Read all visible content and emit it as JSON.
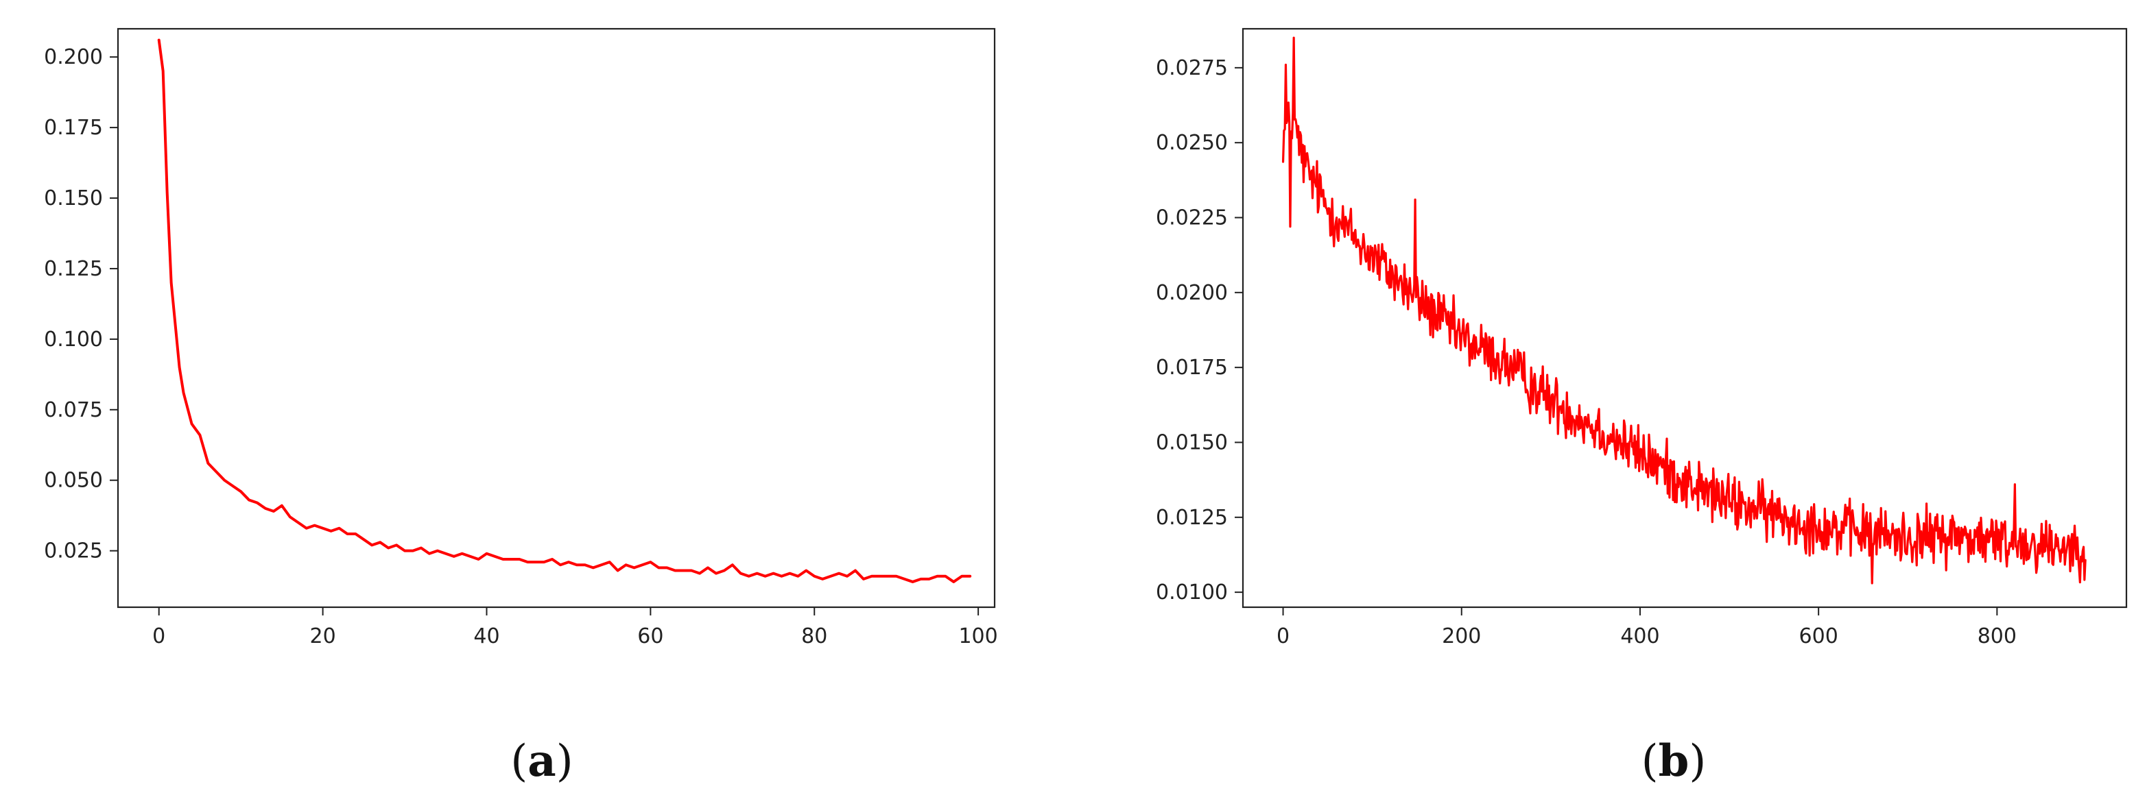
{
  "chart_data": [
    {
      "type": "line",
      "panel_label": "a",
      "title": "",
      "xlabel": "",
      "ylabel": "",
      "xlim": [
        -5,
        102
      ],
      "ylim": [
        0.005,
        0.21
      ],
      "x_ticks": [
        0,
        20,
        40,
        60,
        80,
        100
      ],
      "x_tick_labels": [
        "0",
        "20",
        "40",
        "60",
        "80",
        "100"
      ],
      "y_ticks": [
        0.025,
        0.05,
        0.075,
        0.1,
        0.125,
        0.15,
        0.175,
        0.2
      ],
      "y_tick_labels": [
        "0.025",
        "0.050",
        "0.075",
        "0.100",
        "0.125",
        "0.150",
        "0.175",
        "0.200"
      ],
      "grid": false,
      "series": [
        {
          "color": "#ff0000",
          "x": [
            0,
            0.5,
            1,
            1.5,
            2,
            2.5,
            3,
            4,
            5,
            6,
            7,
            8,
            9,
            10,
            11,
            12,
            13,
            14,
            15,
            16,
            17,
            18,
            19,
            20,
            21,
            22,
            23,
            24,
            25,
            26,
            27,
            28,
            29,
            30,
            31,
            32,
            33,
            34,
            35,
            36,
            37,
            38,
            39,
            40,
            41,
            42,
            43,
            44,
            45,
            46,
            47,
            48,
            49,
            50,
            51,
            52,
            53,
            54,
            55,
            56,
            57,
            58,
            59,
            60,
            61,
            62,
            63,
            64,
            65,
            66,
            67,
            68,
            69,
            70,
            71,
            72,
            73,
            74,
            75,
            76,
            77,
            78,
            79,
            80,
            81,
            82,
            83,
            84,
            85,
            86,
            87,
            88,
            89,
            90,
            91,
            92,
            93,
            94,
            95,
            96,
            97,
            98,
            99
          ],
          "y": [
            0.206,
            0.195,
            0.152,
            0.12,
            0.105,
            0.09,
            0.081,
            0.07,
            0.066,
            0.056,
            0.053,
            0.05,
            0.048,
            0.046,
            0.043,
            0.042,
            0.04,
            0.039,
            0.041,
            0.037,
            0.035,
            0.033,
            0.034,
            0.033,
            0.032,
            0.033,
            0.031,
            0.031,
            0.029,
            0.027,
            0.028,
            0.026,
            0.027,
            0.025,
            0.025,
            0.026,
            0.024,
            0.025,
            0.024,
            0.023,
            0.024,
            0.023,
            0.022,
            0.024,
            0.023,
            0.022,
            0.022,
            0.022,
            0.021,
            0.021,
            0.021,
            0.022,
            0.02,
            0.021,
            0.02,
            0.02,
            0.019,
            0.02,
            0.021,
            0.018,
            0.02,
            0.019,
            0.02,
            0.021,
            0.019,
            0.019,
            0.018,
            0.018,
            0.018,
            0.017,
            0.019,
            0.017,
            0.018,
            0.02,
            0.017,
            0.016,
            0.017,
            0.016,
            0.017,
            0.016,
            0.017,
            0.016,
            0.018,
            0.016,
            0.015,
            0.016,
            0.017,
            0.016,
            0.018,
            0.015,
            0.016,
            0.016,
            0.016,
            0.016,
            0.015,
            0.014,
            0.015,
            0.015,
            0.016,
            0.016,
            0.014,
            0.016,
            0.016
          ]
        }
      ]
    },
    {
      "type": "line",
      "panel_label": "b",
      "title": "",
      "xlabel": "",
      "ylabel": "",
      "xlim": [
        -45,
        945
      ],
      "ylim": [
        0.0095,
        0.0288
      ],
      "x_ticks": [
        0,
        200,
        400,
        600,
        800
      ],
      "x_tick_labels": [
        "0",
        "200",
        "400",
        "600",
        "800"
      ],
      "y_ticks": [
        0.01,
        0.0125,
        0.015,
        0.0175,
        0.02,
        0.0225,
        0.025,
        0.0275
      ],
      "y_tick_labels": [
        "0.0100",
        "0.0125",
        "0.0150",
        "0.0175",
        "0.0200",
        "0.0225",
        "0.0250",
        "0.0275"
      ],
      "grid": false,
      "series": [
        {
          "color": "#ff0000",
          "x_start": 0,
          "x_step": 1,
          "n_points": 900,
          "trend_knots_x": [
            0,
            10,
            25,
            50,
            100,
            150,
            200,
            250,
            300,
            350,
            400,
            450,
            500,
            550,
            600,
            650,
            700,
            750,
            800,
            850,
            899
          ],
          "trend_knots_y": [
            0.0252,
            0.0258,
            0.0242,
            0.0228,
            0.0212,
            0.0198,
            0.0185,
            0.0176,
            0.0164,
            0.0155,
            0.0146,
            0.0137,
            0.013,
            0.0126,
            0.0122,
            0.012,
            0.0118,
            0.0119,
            0.0117,
            0.0116,
            0.0115
          ],
          "noise_amplitude": 0.0007,
          "peak_points": [
            [
              12,
              0.0285
            ],
            [
              3,
              0.0276
            ],
            [
              8,
              0.0222
            ],
            [
              148,
              0.0231
            ],
            [
              660,
              0.0103
            ],
            [
              820,
              0.0136
            ]
          ]
        }
      ]
    }
  ]
}
